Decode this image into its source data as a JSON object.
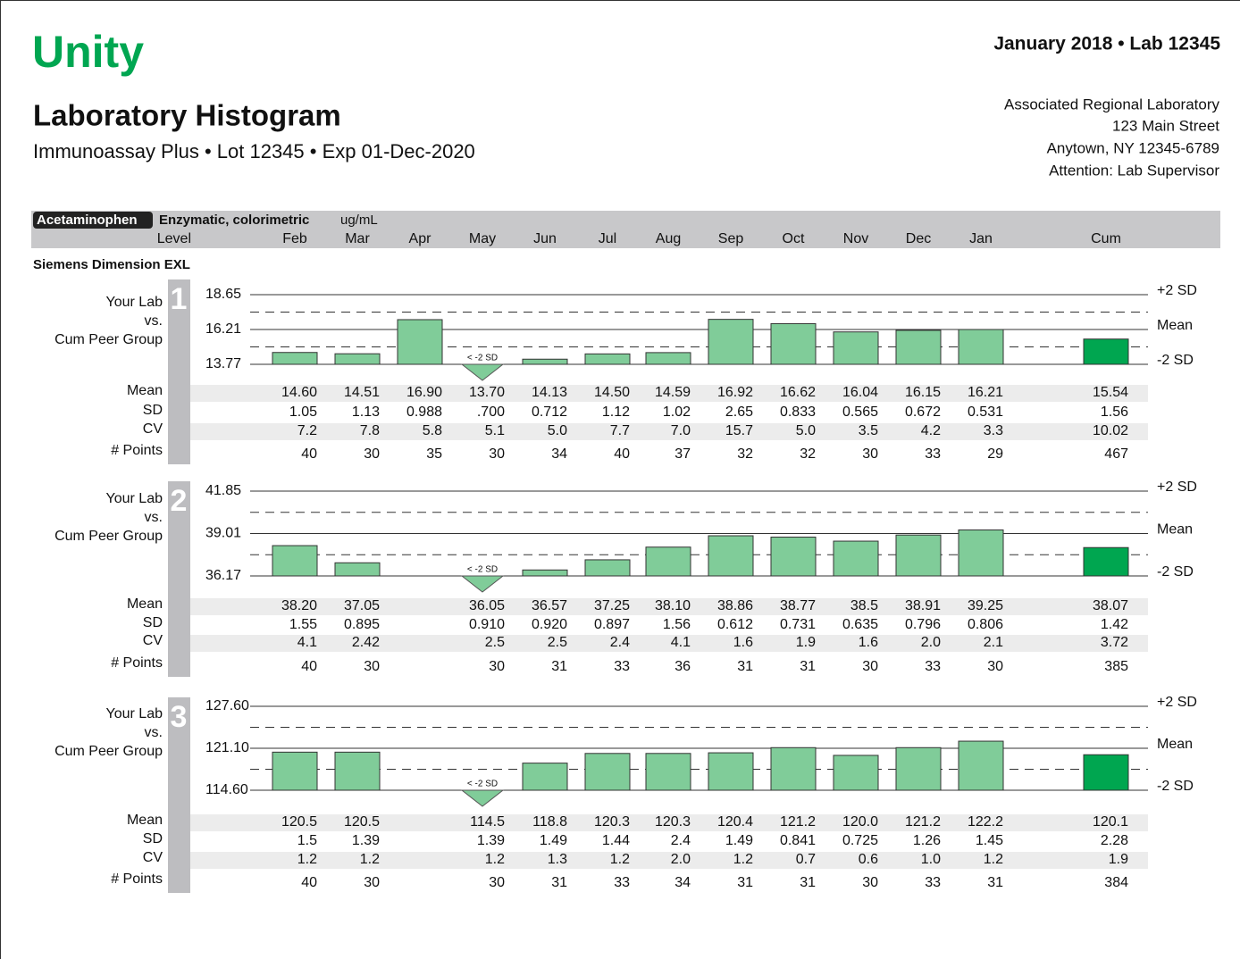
{
  "header": {
    "logo": "Unity",
    "period": "January 2018 • Lab 12345",
    "title": "Laboratory Histogram",
    "subtitle": "Immunoassay Plus • Lot 12345 • Exp 01-Dec-2020",
    "address": [
      "Associated Regional Laboratory",
      "123 Main Street",
      "Anytown, NY 12345-6789",
      "Attention: Lab Supervisor"
    ]
  },
  "test": {
    "analyte": "Acetaminophen",
    "method": "Enzymatic, colorimetric",
    "units": "ug/mL",
    "level_label": "Level",
    "columns": [
      "Feb",
      "Mar",
      "Apr",
      "May",
      "Jun",
      "Jul",
      "Aug",
      "Sep",
      "Oct",
      "Nov",
      "Dec",
      "Jan",
      "Cum"
    ]
  },
  "instrument": "Siemens Dimension EXL",
  "labels": {
    "compare": [
      "Your Lab",
      "vs.",
      "Cum Peer Group"
    ],
    "lines": [
      "+2 SD",
      "Mean",
      "-2 SD"
    ],
    "below": "< -2 SD",
    "rows": [
      "Mean",
      "SD",
      "CV",
      "# Points"
    ]
  },
  "levels": [
    {
      "number": "1",
      "ylim": [
        13.77,
        18.65
      ],
      "yticks": [
        18.65,
        16.21,
        13.77
      ],
      "means": [
        14.6,
        14.51,
        16.9,
        13.7,
        14.13,
        14.5,
        14.59,
        16.92,
        16.62,
        16.04,
        16.15,
        16.21,
        15.54
      ],
      "mean_labels": [
        "14.60",
        "14.51",
        "16.90",
        "13.70",
        "14.13",
        "14.50",
        "14.59",
        "16.92",
        "16.62",
        "16.04",
        "16.15",
        "16.21",
        "15.54"
      ],
      "sd": [
        "1.05",
        "1.13",
        "0.988",
        ".700",
        "0.712",
        "1.12",
        "1.02",
        "2.65",
        "0.833",
        "0.565",
        "0.672",
        "0.531",
        "1.56"
      ],
      "cv": [
        "7.2",
        "7.8",
        "5.8",
        "5.1",
        "5.0",
        "7.7",
        "7.0",
        "15.7",
        "5.0",
        "3.5",
        "4.2",
        "3.3",
        "10.02"
      ],
      "points": [
        "40",
        "30",
        "35",
        "30",
        "34",
        "40",
        "37",
        "32",
        "32",
        "30",
        "33",
        "29",
        "467"
      ]
    },
    {
      "number": "2",
      "ylim": [
        36.17,
        41.85
      ],
      "yticks": [
        41.85,
        39.01,
        36.17
      ],
      "means": [
        38.2,
        37.05,
        null,
        36.05,
        36.57,
        37.25,
        38.1,
        38.86,
        38.77,
        38.5,
        38.91,
        39.25,
        38.07
      ],
      "mean_labels": [
        "38.20",
        "37.05",
        null,
        "36.05",
        "36.57",
        "37.25",
        "38.10",
        "38.86",
        "38.77",
        "38.5",
        "38.91",
        "39.25",
        "38.07"
      ],
      "sd": [
        "1.55",
        "0.895",
        null,
        "0.910",
        "0.920",
        "0.897",
        "1.56",
        "0.612",
        "0.731",
        "0.635",
        "0.796",
        "0.806",
        "1.42"
      ],
      "cv": [
        "4.1",
        "2.42",
        null,
        "2.5",
        "2.5",
        "2.4",
        "4.1",
        "1.6",
        "1.9",
        "1.6",
        "2.0",
        "2.1",
        "3.72"
      ],
      "points": [
        "40",
        "30",
        null,
        "30",
        "31",
        "33",
        "36",
        "31",
        "31",
        "30",
        "33",
        "30",
        "385"
      ]
    },
    {
      "number": "3",
      "ylim": [
        114.6,
        127.6
      ],
      "yticks": [
        {
          "value": 127.6,
          "label": "127.60"
        },
        {
          "value": 121.1,
          "label": "121.10"
        },
        {
          "value": 114.6,
          "label": "114.60"
        }
      ],
      "means": [
        120.5,
        120.5,
        null,
        114.5,
        118.8,
        120.3,
        120.3,
        120.4,
        121.2,
        120.0,
        121.2,
        122.2,
        120.1
      ],
      "mean_labels": [
        "120.5",
        "120.5",
        null,
        "114.5",
        "118.8",
        "120.3",
        "120.3",
        "120.4",
        "121.2",
        "120.0",
        "121.2",
        "122.2",
        "120.1"
      ],
      "sd": [
        "1.5",
        "1.39",
        null,
        "1.39",
        "1.49",
        "1.44",
        "2.4",
        "1.49",
        "0.841",
        "0.725",
        "1.26",
        "1.45",
        "2.28"
      ],
      "cv": [
        "1.2",
        "1.2",
        null,
        "1.2",
        "1.3",
        "1.2",
        "2.0",
        "1.2",
        "0.7",
        "0.6",
        "1.0",
        "1.2",
        "1.9"
      ],
      "points": [
        "40",
        "30",
        null,
        "30",
        "31",
        "33",
        "34",
        "31",
        "31",
        "30",
        "33",
        "31",
        "384"
      ]
    }
  ]
}
